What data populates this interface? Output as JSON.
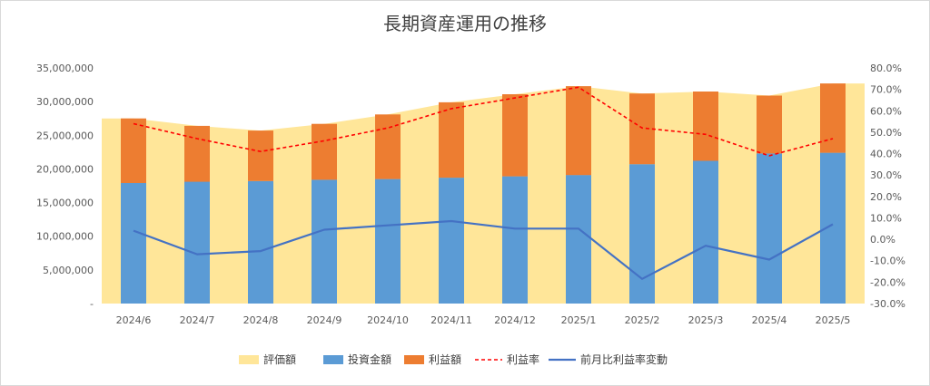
{
  "chart_data": {
    "type": "bar",
    "title": "長期資産運用の推移",
    "categories": [
      "2024/6",
      "2024/7",
      "2024/8",
      "2024/9",
      "2024/10",
      "2024/11",
      "2024/12",
      "2025/1",
      "2025/2",
      "2025/3",
      "2025/4",
      "2025/5"
    ],
    "y_left": {
      "ylim": [
        0,
        35000000
      ],
      "ticks": [
        "-",
        "5,000,000",
        "10,000,000",
        "15,000,000",
        "20,000,000",
        "25,000,000",
        "30,000,000",
        "35,000,000"
      ]
    },
    "y_right": {
      "ylim": [
        -0.3,
        0.8
      ],
      "ticks": [
        "-30.0%",
        "-20.0%",
        "-10.0%",
        "0.0%",
        "10.0%",
        "20.0%",
        "30.0%",
        "40.0%",
        "50.0%",
        "60.0%",
        "70.0%",
        "80.0%"
      ]
    },
    "series": [
      {
        "name": "評価額",
        "kind": "area",
        "axis": "left",
        "color": "#ffe699",
        "values": [
          27500000,
          26400000,
          25700000,
          26700000,
          28100000,
          29900000,
          31100000,
          32300000,
          31200000,
          31500000,
          30900000,
          32700000
        ]
      },
      {
        "name": "投資金額",
        "kind": "stacked-bar",
        "axis": "left",
        "color": "#5b9bd5",
        "values": [
          17900000,
          18100000,
          18200000,
          18400000,
          18500000,
          18700000,
          18900000,
          19100000,
          20700000,
          21200000,
          22300000,
          22400000
        ]
      },
      {
        "name": "利益額",
        "kind": "stacked-bar",
        "axis": "left",
        "color": "#ed7d31",
        "values": [
          9600000,
          8300000,
          7500000,
          8300000,
          9600000,
          11200000,
          12200000,
          13200000,
          10500000,
          10300000,
          8600000,
          10300000
        ]
      },
      {
        "name": "利益率",
        "kind": "dashed-line",
        "axis": "right",
        "color": "#ff0000",
        "values": [
          0.54,
          0.47,
          0.41,
          0.46,
          0.52,
          0.61,
          0.66,
          0.71,
          0.52,
          0.49,
          0.39,
          0.47
        ]
      },
      {
        "name": "前月比利益率変動",
        "kind": "line",
        "axis": "right",
        "color": "#4472c4",
        "values": [
          0.04,
          -0.07,
          -0.055,
          0.045,
          0.065,
          0.085,
          0.05,
          0.05,
          -0.185,
          -0.03,
          -0.095,
          0.07
        ]
      }
    ],
    "legend_position": "bottom",
    "grid": false
  }
}
